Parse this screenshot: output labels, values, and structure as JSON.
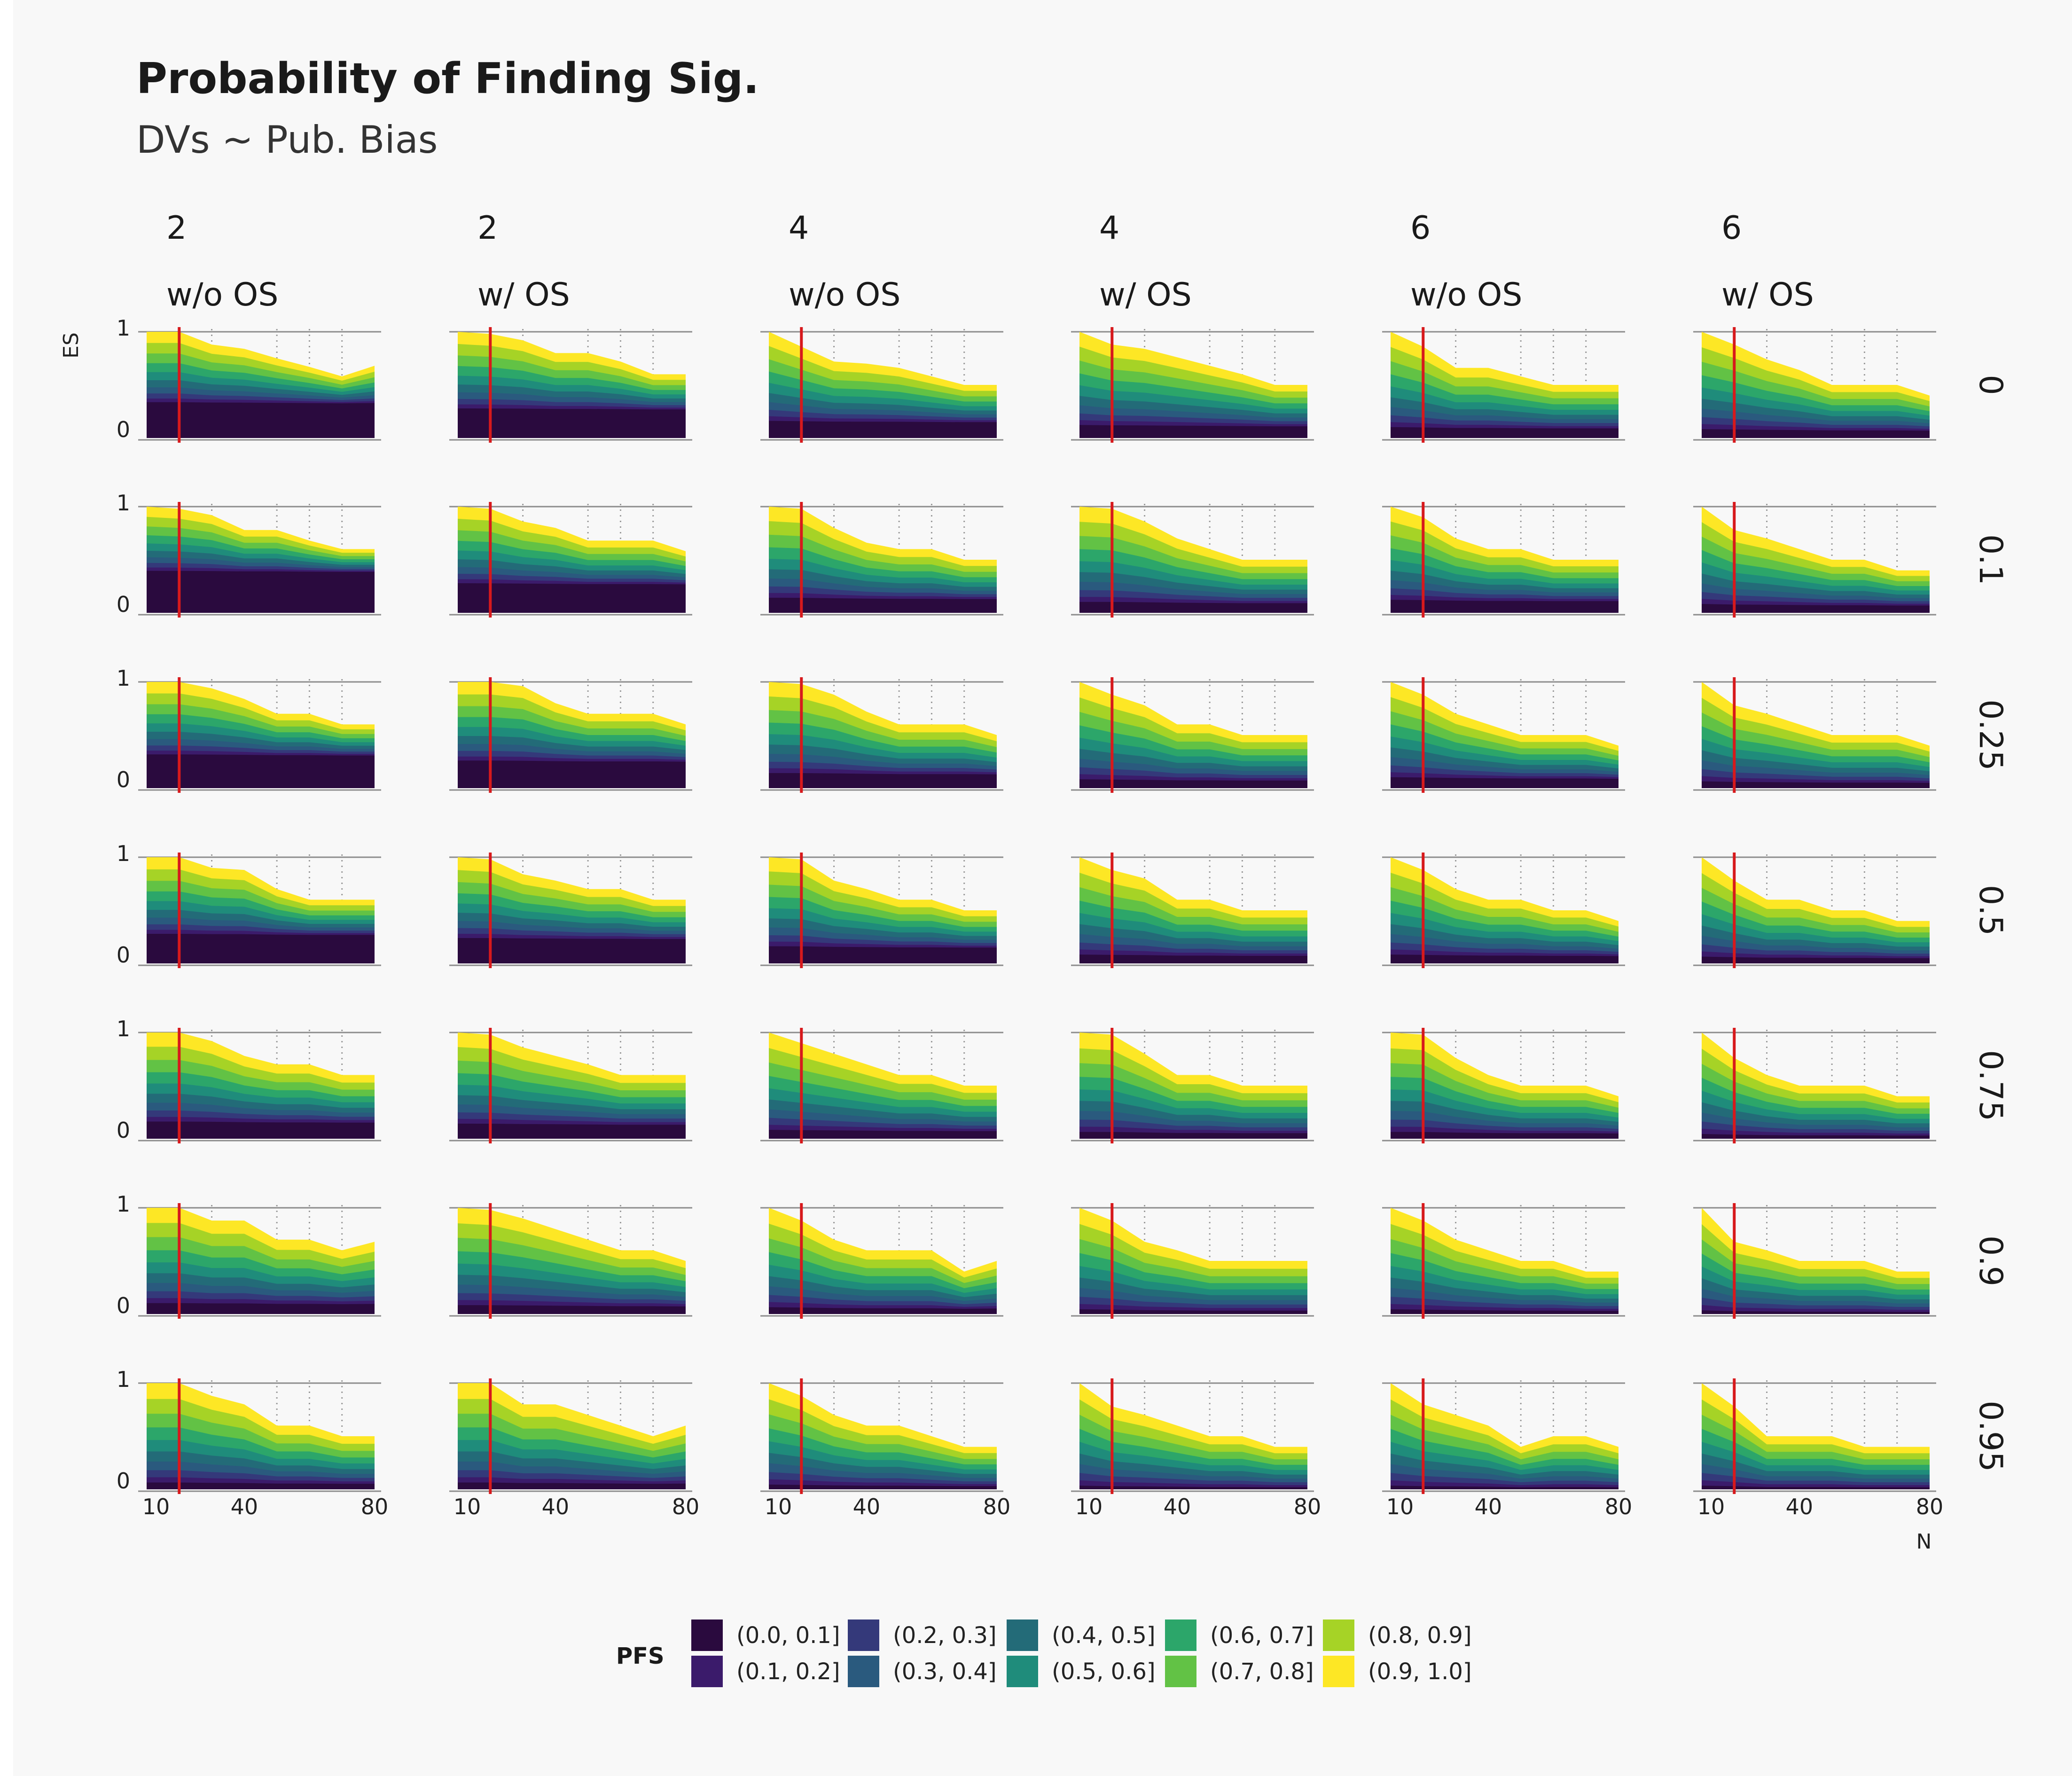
{
  "chart_data": {
    "type": "area",
    "title": "Probability of Finding Sig.",
    "subtitle": "DVs ~ Pub. Bias",
    "xlabel": "N",
    "ylabel": "ES",
    "xlim": [
      10,
      80
    ],
    "ylim": [
      0,
      1
    ],
    "x_ticks": [
      "10",
      "40",
      "80"
    ],
    "y_ticks": [
      "0",
      "1"
    ],
    "reference_line_x": 20,
    "reference_line_color": "#d7191c",
    "columns": [
      {
        "dvs": "2",
        "os": "w/o OS"
      },
      {
        "dvs": "2",
        "os": "w/ OS"
      },
      {
        "dvs": "4",
        "os": "w/o OS"
      },
      {
        "dvs": "4",
        "os": "w/ OS"
      },
      {
        "dvs": "6",
        "os": "w/o OS"
      },
      {
        "dvs": "6",
        "os": "w/ OS"
      }
    ],
    "rows": [
      "0",
      "0.1",
      "0.25",
      "0.5",
      "0.75",
      "0.9",
      "0.95"
    ],
    "n_values": [
      10,
      20,
      30,
      40,
      50,
      60,
      70,
      80
    ],
    "legend": {
      "title": "PFS",
      "bins": [
        {
          "label": "(0.0, 0.1]",
          "color": "#2a0a3e"
        },
        {
          "label": "(0.1, 0.2]",
          "color": "#3b1b6b"
        },
        {
          "label": "(0.2, 0.3]",
          "color": "#34397a"
        },
        {
          "label": "(0.3, 0.4]",
          "color": "#2a5a7e"
        },
        {
          "label": "(0.4, 0.5]",
          "color": "#236b78"
        },
        {
          "label": "(0.5, 0.6]",
          "color": "#1f8c7b"
        },
        {
          "label": "(0.6, 0.7]",
          "color": "#2ca66a"
        },
        {
          "label": "(0.7, 0.8]",
          "color": "#62c245"
        },
        {
          "label": "(0.8, 0.9]",
          "color": "#a6d326"
        },
        {
          "label": "(0.9, 1.0]",
          "color": "#fde725"
        }
      ]
    },
    "panel_boundaries": {
      "0": [
        [
          1.0,
          1.0,
          0.88,
          0.84,
          0.75,
          0.67,
          0.58,
          0.68
        ],
        [
          1.0,
          0.98,
          0.92,
          0.8,
          0.8,
          0.72,
          0.6,
          0.6
        ],
        [
          1.0,
          0.86,
          0.72,
          0.7,
          0.66,
          0.58,
          0.5,
          0.5
        ],
        [
          1.0,
          0.88,
          0.84,
          0.76,
          0.68,
          0.6,
          0.5,
          0.5
        ],
        [
          1.0,
          0.86,
          0.66,
          0.66,
          0.58,
          0.5,
          0.5,
          0.5
        ],
        [
          1.0,
          0.88,
          0.74,
          0.64,
          0.5,
          0.5,
          0.5,
          0.4
        ]
      ],
      "0.1": [
        [
          1.0,
          0.98,
          0.92,
          0.78,
          0.78,
          0.68,
          0.6,
          0.6
        ],
        [
          1.0,
          0.98,
          0.86,
          0.8,
          0.68,
          0.68,
          0.68,
          0.58
        ],
        [
          1.0,
          0.98,
          0.8,
          0.66,
          0.6,
          0.6,
          0.5,
          0.5
        ],
        [
          1.0,
          0.98,
          0.86,
          0.7,
          0.6,
          0.5,
          0.5,
          0.5
        ],
        [
          1.0,
          0.9,
          0.7,
          0.6,
          0.6,
          0.5,
          0.5,
          0.5
        ],
        [
          1.0,
          0.78,
          0.7,
          0.6,
          0.5,
          0.5,
          0.4,
          0.4
        ]
      ],
      "0.25": [
        [
          1.0,
          1.0,
          0.94,
          0.84,
          0.7,
          0.7,
          0.6,
          0.6
        ],
        [
          1.0,
          1.0,
          0.96,
          0.8,
          0.7,
          0.7,
          0.7,
          0.6
        ],
        [
          1.0,
          0.98,
          0.88,
          0.72,
          0.6,
          0.6,
          0.6,
          0.5
        ],
        [
          1.0,
          0.88,
          0.78,
          0.6,
          0.6,
          0.5,
          0.5,
          0.5
        ],
        [
          1.0,
          0.88,
          0.7,
          0.6,
          0.5,
          0.5,
          0.5,
          0.4
        ],
        [
          1.0,
          0.78,
          0.7,
          0.6,
          0.5,
          0.5,
          0.5,
          0.4
        ]
      ],
      "0.5": [
        [
          1.0,
          1.0,
          0.9,
          0.88,
          0.7,
          0.6,
          0.6,
          0.6
        ],
        [
          1.0,
          0.98,
          0.84,
          0.78,
          0.7,
          0.7,
          0.6,
          0.6
        ],
        [
          1.0,
          0.98,
          0.78,
          0.7,
          0.6,
          0.6,
          0.5,
          0.5
        ],
        [
          1.0,
          0.88,
          0.8,
          0.6,
          0.6,
          0.5,
          0.5,
          0.5
        ],
        [
          1.0,
          0.88,
          0.7,
          0.6,
          0.6,
          0.5,
          0.5,
          0.4
        ],
        [
          1.0,
          0.78,
          0.6,
          0.6,
          0.5,
          0.5,
          0.4,
          0.4
        ]
      ],
      "0.75": [
        [
          1.0,
          1.0,
          0.92,
          0.78,
          0.7,
          0.7,
          0.6,
          0.6
        ],
        [
          1.0,
          0.98,
          0.86,
          0.78,
          0.7,
          0.6,
          0.6,
          0.6
        ],
        [
          1.0,
          0.9,
          0.8,
          0.7,
          0.6,
          0.6,
          0.5,
          0.5
        ],
        [
          1.0,
          0.98,
          0.8,
          0.6,
          0.6,
          0.5,
          0.5,
          0.5
        ],
        [
          1.0,
          0.98,
          0.76,
          0.6,
          0.5,
          0.5,
          0.5,
          0.4
        ],
        [
          1.0,
          0.76,
          0.6,
          0.5,
          0.5,
          0.5,
          0.4,
          0.4
        ]
      ],
      "0.9": [
        [
          1.0,
          1.0,
          0.88,
          0.88,
          0.7,
          0.7,
          0.6,
          0.68
        ],
        [
          1.0,
          0.98,
          0.9,
          0.8,
          0.7,
          0.6,
          0.6,
          0.5
        ],
        [
          1.0,
          0.88,
          0.7,
          0.6,
          0.6,
          0.6,
          0.4,
          0.5
        ],
        [
          1.0,
          0.88,
          0.68,
          0.6,
          0.5,
          0.5,
          0.5,
          0.5
        ],
        [
          1.0,
          0.88,
          0.7,
          0.6,
          0.5,
          0.5,
          0.4,
          0.4
        ],
        [
          1.0,
          0.68,
          0.6,
          0.5,
          0.5,
          0.5,
          0.4,
          0.4
        ]
      ],
      "0.95": [
        [
          1.0,
          1.0,
          0.88,
          0.8,
          0.6,
          0.6,
          0.5,
          0.5
        ],
        [
          1.0,
          1.0,
          0.8,
          0.8,
          0.7,
          0.6,
          0.5,
          0.6
        ],
        [
          1.0,
          0.88,
          0.7,
          0.6,
          0.6,
          0.5,
          0.4,
          0.4
        ],
        [
          1.0,
          0.78,
          0.7,
          0.6,
          0.5,
          0.5,
          0.4,
          0.4
        ],
        [
          1.0,
          0.8,
          0.7,
          0.6,
          0.4,
          0.5,
          0.5,
          0.4
        ],
        [
          1.0,
          0.78,
          0.5,
          0.5,
          0.5,
          0.4,
          0.4,
          0.4
        ]
      ]
    },
    "panel_bands": {
      "0": [
        0.32,
        0.26,
        0.14,
        0.1,
        0.08,
        0.06
      ],
      "0.1": [
        0.38,
        0.26,
        0.12,
        0.08,
        0.1,
        0.06
      ],
      "0.25": [
        0.3,
        0.24,
        0.12,
        0.06,
        0.08,
        0.04
      ],
      "0.5": [
        0.26,
        0.22,
        0.14,
        0.06,
        0.06,
        0.04
      ],
      "0.75": [
        0.14,
        0.12,
        0.06,
        0.04,
        0.04,
        0.02
      ],
      "0.9": [
        0.08,
        0.06,
        0.04,
        0.02,
        0.02,
        0.01
      ],
      "0.95": [
        0.04,
        0.04,
        0.02,
        0.01,
        0.01,
        0.01
      ]
    }
  }
}
